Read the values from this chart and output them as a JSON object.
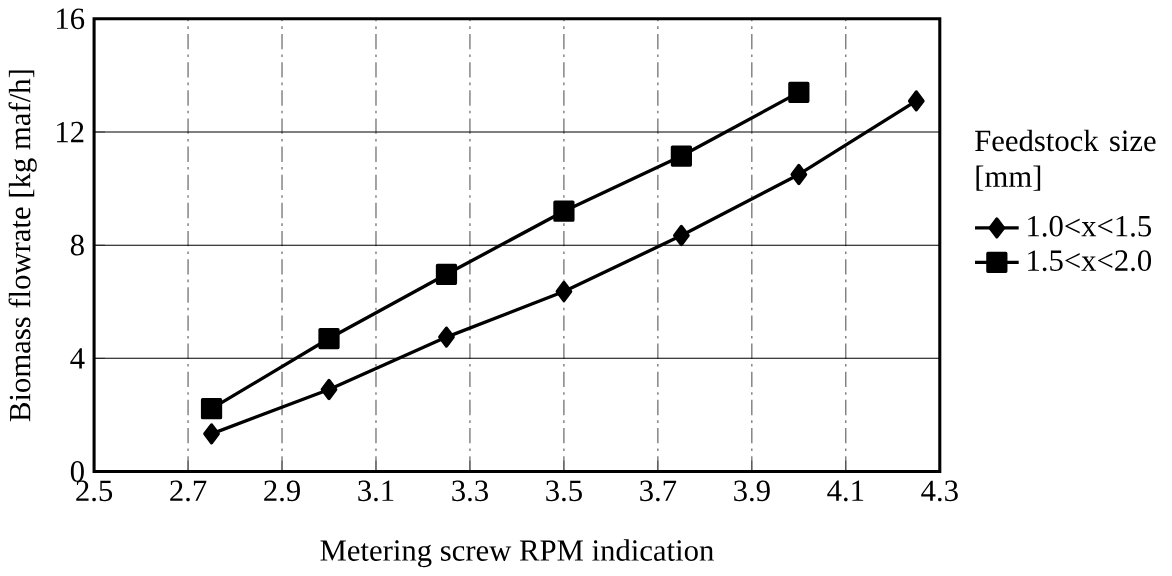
{
  "chart_data": {
    "type": "line",
    "xlabel": "Metering screw RPM indication",
    "ylabel": "Biomass flowrate [kg maf/h]",
    "legend_title": "Feedstock size [mm]",
    "x": [
      2.75,
      3.0,
      3.25,
      3.5,
      3.75,
      4.0,
      4.25
    ],
    "series": [
      {
        "name": "1.0<x<1.5",
        "color": "#000000",
        "marker": "diamond",
        "values": [
          1.33,
          2.9,
          4.75,
          6.36,
          8.34,
          10.5,
          13.1
        ]
      },
      {
        "name": "1.5<x<2.0",
        "color": "#000000",
        "marker": "square",
        "values": [
          2.22,
          4.7,
          6.97,
          9.2,
          11.15,
          13.4,
          null
        ]
      }
    ],
    "xlim": [
      2.5,
      4.3
    ],
    "xticks": [
      2.5,
      2.7,
      2.9,
      3.1,
      3.3,
      3.5,
      3.7,
      3.9,
      4.1,
      4.3
    ],
    "ylim": [
      0,
      16
    ],
    "yticks": [
      0,
      4,
      8,
      12,
      16
    ],
    "grid": true,
    "legend": "right",
    "line_style": "solid"
  }
}
